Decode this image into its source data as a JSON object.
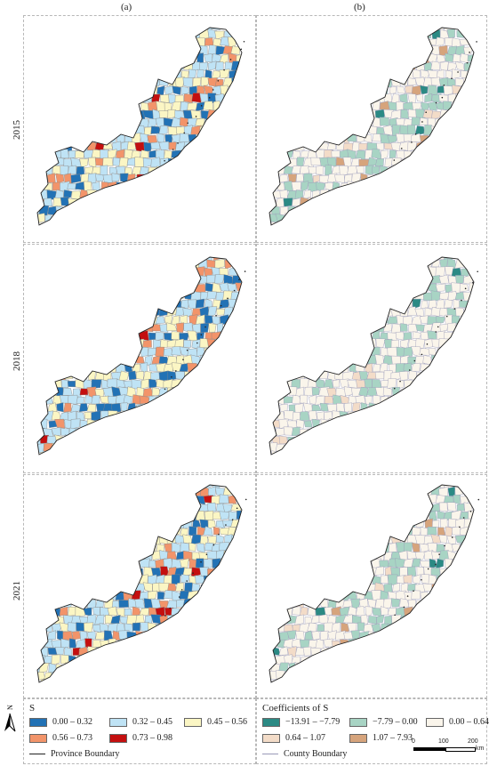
{
  "columns": [
    "(a)",
    "(b)"
  ],
  "rows": [
    "2015",
    "2018",
    "2021"
  ],
  "legend_a": {
    "title": "S",
    "items": [
      {
        "label": "0.00 – 0.32",
        "color": "#2272b5"
      },
      {
        "label": "0.32 – 0.45",
        "color": "#bfe3f5"
      },
      {
        "label": "0.45 – 0.56",
        "color": "#fbf6c4"
      },
      {
        "label": "0.56 – 0.73",
        "color": "#f2946a"
      },
      {
        "label": "0.73 – 0.98",
        "color": "#c40f0f"
      }
    ],
    "boundary": "Province Boundary"
  },
  "legend_b": {
    "title": "Coefficients of S",
    "items": [
      {
        "label": "−13.91 – −7.79",
        "color": "#2b8a84"
      },
      {
        "label": "−7.79 – 0.00",
        "color": "#a8d4c4"
      },
      {
        "label": "0.00 – 0.64",
        "color": "#faf5eb"
      },
      {
        "label": "0.64 – 1.07",
        "color": "#f3dcc8"
      },
      {
        "label": "1.07 – 7.93",
        "color": "#d6a47c"
      }
    ],
    "boundary": "County Boundary"
  },
  "scale_bar": {
    "ticks": [
      "0",
      "100",
      "200"
    ],
    "unit": "km"
  },
  "north_label": "N"
}
